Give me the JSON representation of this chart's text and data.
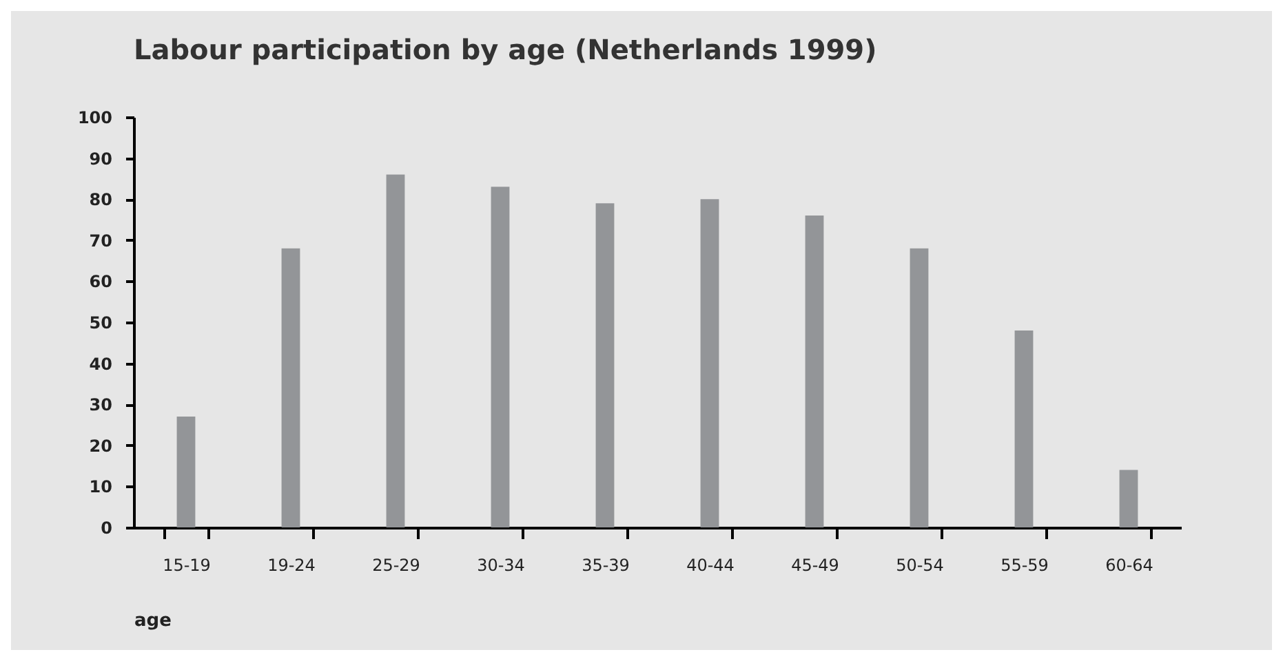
{
  "chart_data": {
    "type": "bar",
    "title": "Labour participation by age (Netherlands 1999)",
    "xlabel": "age",
    "categories": [
      "15-19",
      "19-24",
      "25-29",
      "30-34",
      "35-39",
      "40-44",
      "45-49",
      "50-54",
      "55-59",
      "60-64"
    ],
    "values": [
      27,
      68,
      86,
      83,
      79,
      80,
      76,
      68,
      48,
      14
    ],
    "color": "#939598",
    "ylim": [
      0,
      100
    ],
    "yticks": [
      0,
      10,
      20,
      30,
      40,
      50,
      60,
      70,
      80,
      90,
      100
    ],
    "grid": false
  }
}
